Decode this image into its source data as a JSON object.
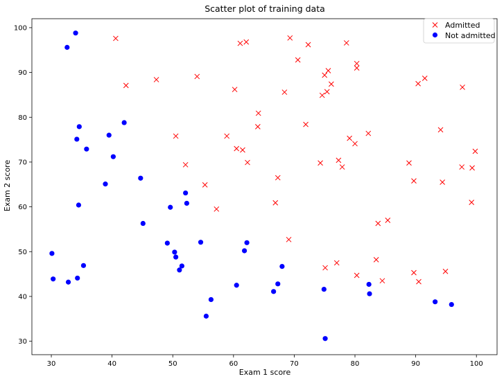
{
  "chart_data": {
    "type": "scatter",
    "title": "Scatter plot of training data",
    "xlabel": "Exam 1 score",
    "ylabel": "Exam 2 score",
    "xlim": [
      26.8,
      103.4
    ],
    "ylim": [
      27.0,
      102.0
    ],
    "xticks": [
      30,
      40,
      50,
      60,
      70,
      80,
      90,
      100
    ],
    "yticks": [
      30,
      40,
      50,
      60,
      70,
      80,
      90,
      100
    ],
    "grid": false,
    "legend_position": "top-right",
    "series": [
      {
        "name": "Admitted",
        "marker": "x",
        "color": "#ff0000",
        "points": [
          [
            40.6,
            97.6
          ],
          [
            42.3,
            87.1
          ],
          [
            47.3,
            88.4
          ],
          [
            50.5,
            75.8
          ],
          [
            52.1,
            69.4
          ],
          [
            54.0,
            89.1
          ],
          [
            55.3,
            64.9
          ],
          [
            57.2,
            59.5
          ],
          [
            58.9,
            75.8
          ],
          [
            60.2,
            86.2
          ],
          [
            60.5,
            73.0
          ],
          [
            61.1,
            96.5
          ],
          [
            61.5,
            72.7
          ],
          [
            62.1,
            96.8
          ],
          [
            62.3,
            69.9
          ],
          [
            64.0,
            77.9
          ],
          [
            64.1,
            80.9
          ],
          [
            66.9,
            60.9
          ],
          [
            67.3,
            66.5
          ],
          [
            68.4,
            85.6
          ],
          [
            69.1,
            52.7
          ],
          [
            69.3,
            97.7
          ],
          [
            70.6,
            92.8
          ],
          [
            71.9,
            78.4
          ],
          [
            72.3,
            96.2
          ],
          [
            74.3,
            69.8
          ],
          [
            74.6,
            84.9
          ],
          [
            75.0,
            89.4
          ],
          [
            75.1,
            46.4
          ],
          [
            75.4,
            85.7
          ],
          [
            75.6,
            90.4
          ],
          [
            76.1,
            87.4
          ],
          [
            77.0,
            47.5
          ],
          [
            77.3,
            70.4
          ],
          [
            77.9,
            68.9
          ],
          [
            78.6,
            96.6
          ],
          [
            79.1,
            75.3
          ],
          [
            80.0,
            74.1
          ],
          [
            80.3,
            44.7
          ],
          [
            80.3,
            92.0
          ],
          [
            80.3,
            91.0
          ],
          [
            82.2,
            76.4
          ],
          [
            83.5,
            48.2
          ],
          [
            83.8,
            56.3
          ],
          [
            84.5,
            43.5
          ],
          [
            85.4,
            57.0
          ],
          [
            88.9,
            69.8
          ],
          [
            89.7,
            65.8
          ],
          [
            89.7,
            45.3
          ],
          [
            90.4,
            87.5
          ],
          [
            90.5,
            43.3
          ],
          [
            91.5,
            88.7
          ],
          [
            94.1,
            77.2
          ],
          [
            94.4,
            65.5
          ],
          [
            94.9,
            45.6
          ],
          [
            97.6,
            68.9
          ],
          [
            97.7,
            86.7
          ],
          [
            99.2,
            61.0
          ],
          [
            99.3,
            68.7
          ],
          [
            99.8,
            72.4
          ]
        ]
      },
      {
        "name": "Not admitted",
        "marker": "o",
        "color": "#0000ff",
        "points": [
          [
            30.1,
            49.6
          ],
          [
            30.3,
            43.9
          ],
          [
            32.6,
            95.6
          ],
          [
            32.8,
            43.2
          ],
          [
            34.0,
            98.8
          ],
          [
            34.2,
            75.1
          ],
          [
            34.3,
            44.1
          ],
          [
            34.5,
            60.4
          ],
          [
            34.6,
            77.9
          ],
          [
            35.3,
            46.9
          ],
          [
            35.8,
            72.9
          ],
          [
            38.9,
            65.1
          ],
          [
            39.5,
            76.0
          ],
          [
            40.2,
            71.2
          ],
          [
            42.0,
            78.8
          ],
          [
            44.7,
            66.4
          ],
          [
            45.1,
            56.3
          ],
          [
            49.1,
            51.9
          ],
          [
            49.6,
            59.9
          ],
          [
            50.3,
            49.9
          ],
          [
            50.5,
            48.8
          ],
          [
            51.1,
            45.9
          ],
          [
            51.5,
            46.8
          ],
          [
            52.1,
            63.1
          ],
          [
            52.3,
            60.8
          ],
          [
            54.6,
            52.1
          ],
          [
            55.5,
            35.6
          ],
          [
            56.3,
            39.3
          ],
          [
            60.5,
            42.5
          ],
          [
            61.8,
            50.2
          ],
          [
            62.2,
            52.0
          ],
          [
            66.6,
            41.1
          ],
          [
            67.3,
            42.8
          ],
          [
            68.0,
            46.7
          ],
          [
            74.9,
            41.6
          ],
          [
            75.1,
            30.6
          ],
          [
            82.3,
            42.7
          ],
          [
            82.4,
            40.6
          ],
          [
            93.2,
            38.8
          ],
          [
            95.9,
            38.2
          ]
        ]
      }
    ]
  }
}
